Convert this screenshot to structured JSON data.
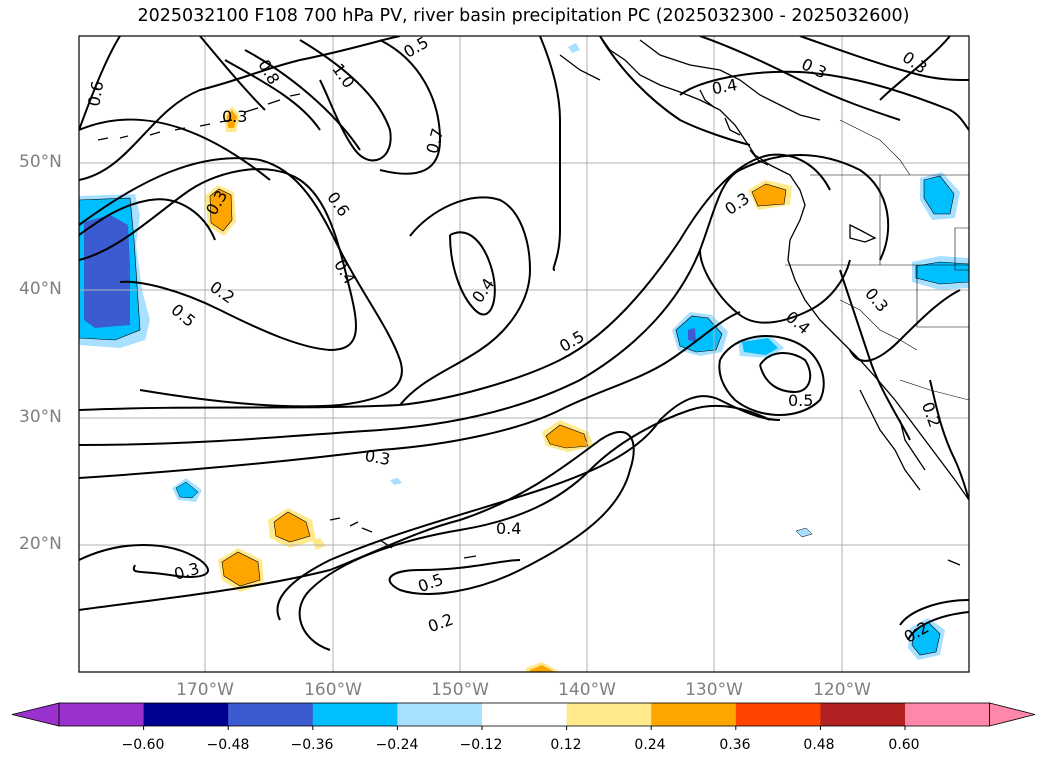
{
  "title": "2025032100 F108 700 hPa PV, river basin precipitation PC (2025032300 - 2025032600)",
  "lat_labels": [
    "50°N",
    "40°N",
    "30°N",
    "20°N"
  ],
  "lon_labels": [
    "170°W",
    "160°W",
    "150°W",
    "140°W",
    "130°W",
    "120°W"
  ],
  "contour_labels": [
    "0.6",
    "0.3",
    "0.8",
    "1.0",
    "0.5",
    "0.7",
    "0.6",
    "0.2",
    "0.4",
    "0.5",
    "0.4",
    "0.4",
    "0.3",
    "0.3",
    "0.3",
    "0.4",
    "0.5",
    "0.3",
    "0.3",
    "0.4",
    "0.3",
    "0.5",
    "0.2",
    "0.3",
    "0.2"
  ],
  "colorbar": {
    "ticks": [
      "−0.60",
      "−0.48",
      "−0.36",
      "−0.24",
      "−0.12",
      "0.12",
      "0.24",
      "0.36",
      "0.48",
      "0.60"
    ],
    "colors": [
      "#9a31cc",
      "#000090",
      "#3b5bd1",
      "#00bfff",
      "#a8e0ff",
      "#ffffff",
      "#ffe98a",
      "#ffa500",
      "#ff4500",
      "#b22222",
      "#ff88aa",
      "#ff88aa"
    ],
    "under_color": "#9a31cc",
    "over_color": "#ff88aa"
  },
  "colors": {
    "contour": "#000000",
    "grid": "#b0b0b0",
    "coast": "#000000",
    "pos_light": "#ffe98a",
    "pos_strong": "#ffa500",
    "neg_light": "#a8e0ff",
    "neg_mid": "#00bfff",
    "neg_strong": "#3b5bd1"
  }
}
